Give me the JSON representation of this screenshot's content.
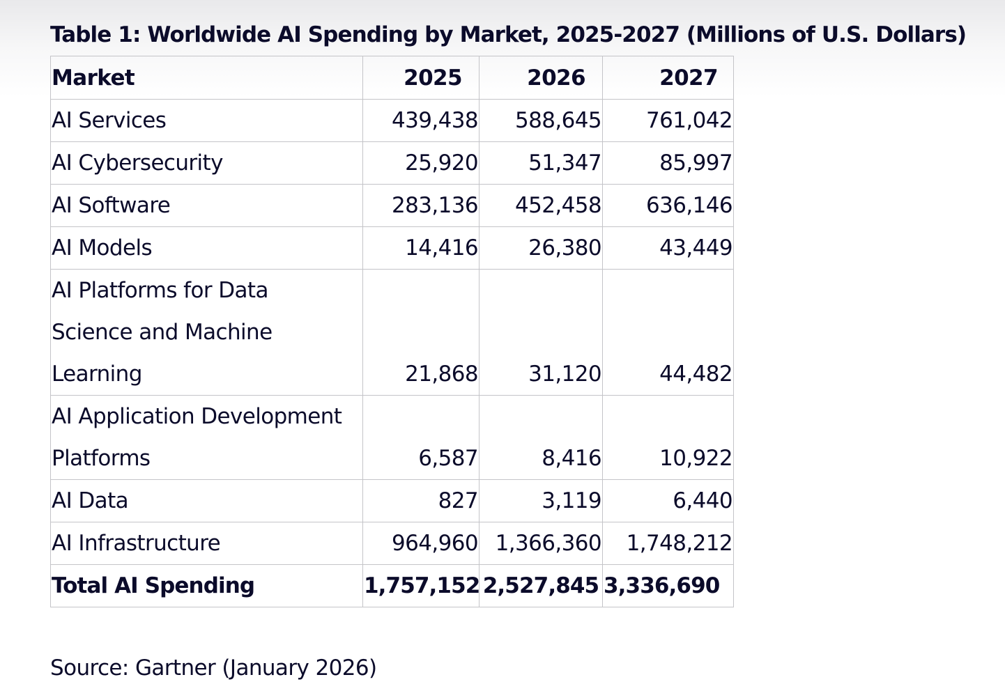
{
  "title": "Table 1: Worldwide AI Spending by Market, 2025-2027 (Millions of U.S. Dollars)",
  "table": {
    "headers": [
      "Market",
      "2025",
      "2026",
      "2027"
    ],
    "rows": [
      {
        "market": "AI Services",
        "y2025": "439,438",
        "y2026": "588,645",
        "y2027": "761,042"
      },
      {
        "market": "AI Cybersecurity",
        "y2025": "25,920",
        "y2026": "51,347",
        "y2027": "85,997"
      },
      {
        "market": "AI Software",
        "y2025": "283,136",
        "y2026": "452,458",
        "y2027": "636,146"
      },
      {
        "market": "AI Models",
        "y2025": "14,416",
        "y2026": "26,380",
        "y2027": "43,449"
      },
      {
        "market": "AI Platforms for Data Science and Machine Learning",
        "y2025": "21,868",
        "y2026": "31,120",
        "y2027": "44,482"
      },
      {
        "market": "AI Application Development Platforms",
        "y2025": "6,587",
        "y2026": "8,416",
        "y2027": "10,922"
      },
      {
        "market": "AI Data",
        "y2025": "827",
        "y2026": "3,119",
        "y2027": "6,440"
      },
      {
        "market": "AI Infrastructure",
        "y2025": "964,960",
        "y2026": "1,366,360",
        "y2027": "1,748,212"
      }
    ],
    "total": {
      "market": "Total AI Spending",
      "y2025": "1,757,152",
      "y2026": "2,527,845",
      "y2027": "3,336,690"
    }
  },
  "source": "Source: Gartner (January 2026)"
}
